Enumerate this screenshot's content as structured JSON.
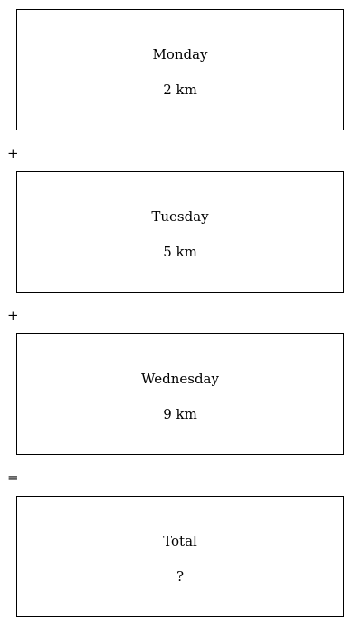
{
  "boxes": [
    {
      "label": "Monday",
      "value": "2 km"
    },
    {
      "label": "Tuesday",
      "value": "5 km"
    },
    {
      "label": "Wednesday",
      "value": "9 km"
    },
    {
      "label": "Total",
      "value": "?"
    }
  ],
  "operators": [
    "+",
    "+",
    "="
  ]
}
